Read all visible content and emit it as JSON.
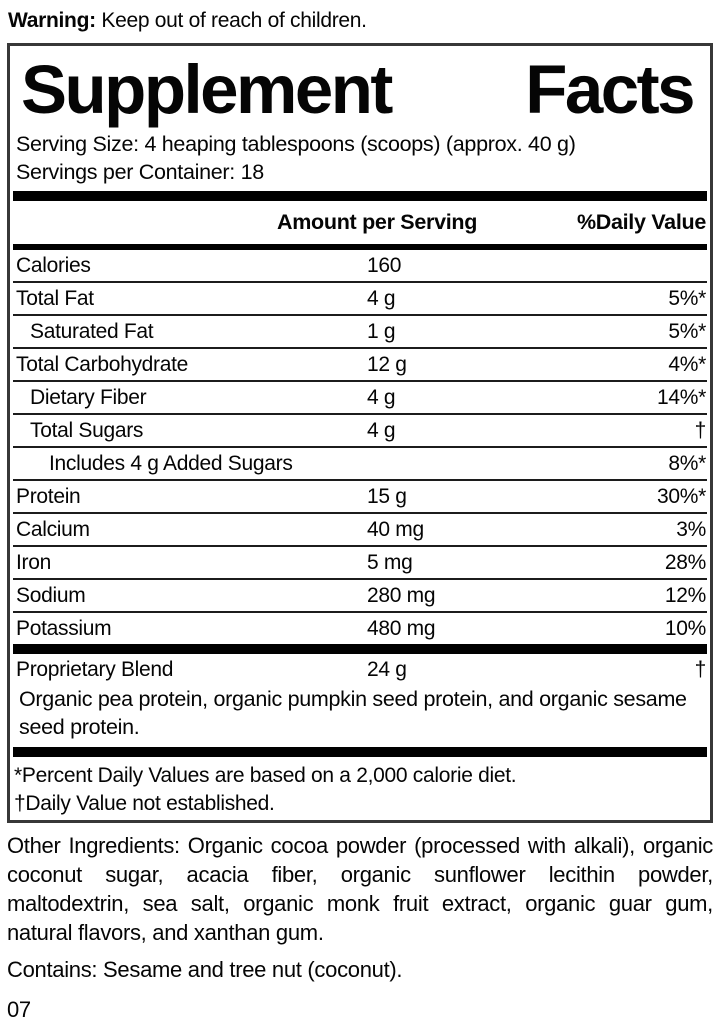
{
  "warning": {
    "label": "Warning:",
    "text": "Keep out of reach of children."
  },
  "panel": {
    "title_word1": "Supplement",
    "title_word2": "Facts",
    "serving_size": "Serving Size: 4 heaping tablespoons (scoops) (approx. 40 g)",
    "servings_per_container": "Servings per Container: 18",
    "header": {
      "amount": "Amount per Serving",
      "daily_value": "%Daily Value"
    },
    "rows": [
      {
        "label": "Calories",
        "amount": "160",
        "dv": "",
        "indent": 0
      },
      {
        "label": "Total Fat",
        "amount": "4 g",
        "dv": "5%*",
        "indent": 0
      },
      {
        "label": "Saturated Fat",
        "amount": "1 g",
        "dv": "5%*",
        "indent": 1
      },
      {
        "label": "Total Carbohydrate",
        "amount": "12 g",
        "dv": "4%*",
        "indent": 0
      },
      {
        "label": "Dietary Fiber",
        "amount": "4 g",
        "dv": "14%*",
        "indent": 1
      },
      {
        "label": "Total Sugars",
        "amount": "4 g",
        "dv": "†",
        "indent": 1
      },
      {
        "label": "Includes 4 g Added Sugars",
        "amount": "",
        "dv": "8%*",
        "indent": 2
      },
      {
        "label": "Protein",
        "amount": "15 g",
        "dv": "30%*",
        "indent": 0
      },
      {
        "label": "Calcium",
        "amount": "40 mg",
        "dv": "3%",
        "indent": 0
      },
      {
        "label": "Iron",
        "amount": "5 mg",
        "dv": "28%",
        "indent": 0
      },
      {
        "label": "Sodium",
        "amount": "280 mg",
        "dv": "12%",
        "indent": 0
      },
      {
        "label": "Potassium",
        "amount": "480 mg",
        "dv": "10%",
        "indent": 0
      }
    ],
    "blend": {
      "label": "Proprietary Blend",
      "amount": "24 g",
      "dv": "†",
      "description": "Organic pea protein, organic pumpkin seed protein, and organic sesame seed protein."
    },
    "footnotes": [
      "*Percent Daily Values are based on a 2,000 calorie diet.",
      "†Daily Value not established."
    ]
  },
  "other_ingredients": "Other Ingredients: Organic cocoa powder (processed with alkali), organic coconut sugar, acacia fiber, organic sunflower lecithin powder, maltodextrin, sea salt, organic monk fruit extract, organic guar gum, natural flavors, and xanthan gum.",
  "contains": "Contains: Sesame and tree nut (coconut).",
  "footer_code": "07",
  "colors": {
    "ink": "#000000",
    "background": "#ffffff"
  }
}
